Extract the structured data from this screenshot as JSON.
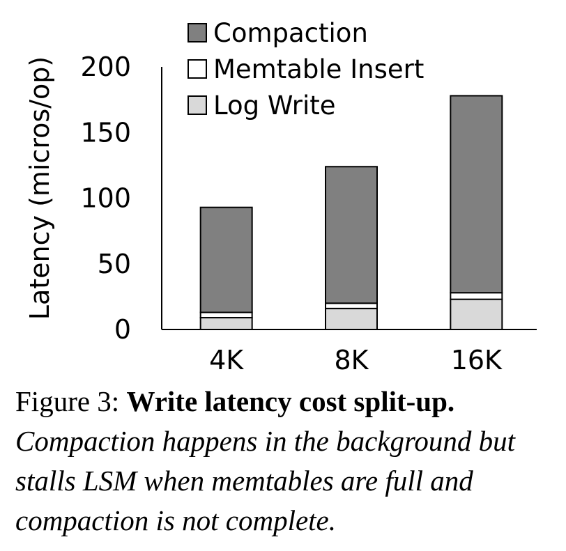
{
  "chart_data": {
    "type": "bar",
    "stacked": true,
    "categories": [
      "4K",
      "8K",
      "16K"
    ],
    "series": [
      {
        "name": "Log Write",
        "values": [
          9,
          16,
          23
        ],
        "color": "#d9d9d9"
      },
      {
        "name": "Memtable Insert",
        "values": [
          4,
          4,
          5
        ],
        "color": "#ffffff"
      },
      {
        "name": "Compaction",
        "values": [
          80,
          104,
          150
        ],
        "color": "#808080"
      }
    ],
    "legend_order": [
      "Compaction",
      "Memtable Insert",
      "Log Write"
    ],
    "legend_position": "top",
    "ylabel": "Latency (micros/op)",
    "xlabel": "",
    "ylim": [
      0,
      200
    ],
    "yticks": [
      0,
      50,
      100,
      150,
      200
    ],
    "grid": false
  },
  "caption": {
    "label": "Figure 3:",
    "title": "Write latency cost split-up.",
    "body": "Compaction happens in the background but stalls LSM when memtables are full and compaction is not complete."
  }
}
